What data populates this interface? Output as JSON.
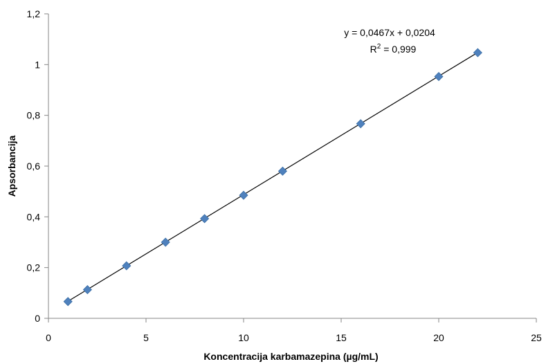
{
  "chart_data": {
    "type": "scatter",
    "title": "",
    "xlabel": "Koncentracija karbamazepina (µg/mL)",
    "ylabel": "Apsorbancija",
    "xlim": [
      0,
      25
    ],
    "ylim": [
      0,
      1.2
    ],
    "x_ticks": [
      0,
      5,
      10,
      15,
      20,
      25
    ],
    "x_tick_labels": [
      "0",
      "5",
      "10",
      "15",
      "20",
      "25"
    ],
    "y_ticks": [
      0,
      0.2,
      0.4,
      0.6,
      0.8,
      1.0,
      1.2
    ],
    "y_tick_labels": [
      "0",
      "0,2",
      "0,4",
      "0,6",
      "0,8",
      "1",
      "1,2"
    ],
    "grid": false,
    "legend": "none",
    "series": [
      {
        "x": [
          1,
          2,
          4,
          6,
          8,
          10,
          12,
          16,
          20,
          22
        ],
        "y": [
          0.066,
          0.113,
          0.207,
          0.3,
          0.393,
          0.485,
          0.58,
          0.767,
          0.953,
          1.047
        ],
        "marker": "diamond",
        "color": "#4F81BD"
      }
    ],
    "trendline": {
      "slope": 0.0467,
      "intercept": 0.0204,
      "x_range": [
        1,
        22
      ],
      "color": "#000000",
      "equation_label": "y = 0,0467x + 0,0204",
      "r2_label_prefix": "R",
      "r2_label_sup": "2",
      "r2_label_suffix": " = 0,999"
    }
  }
}
